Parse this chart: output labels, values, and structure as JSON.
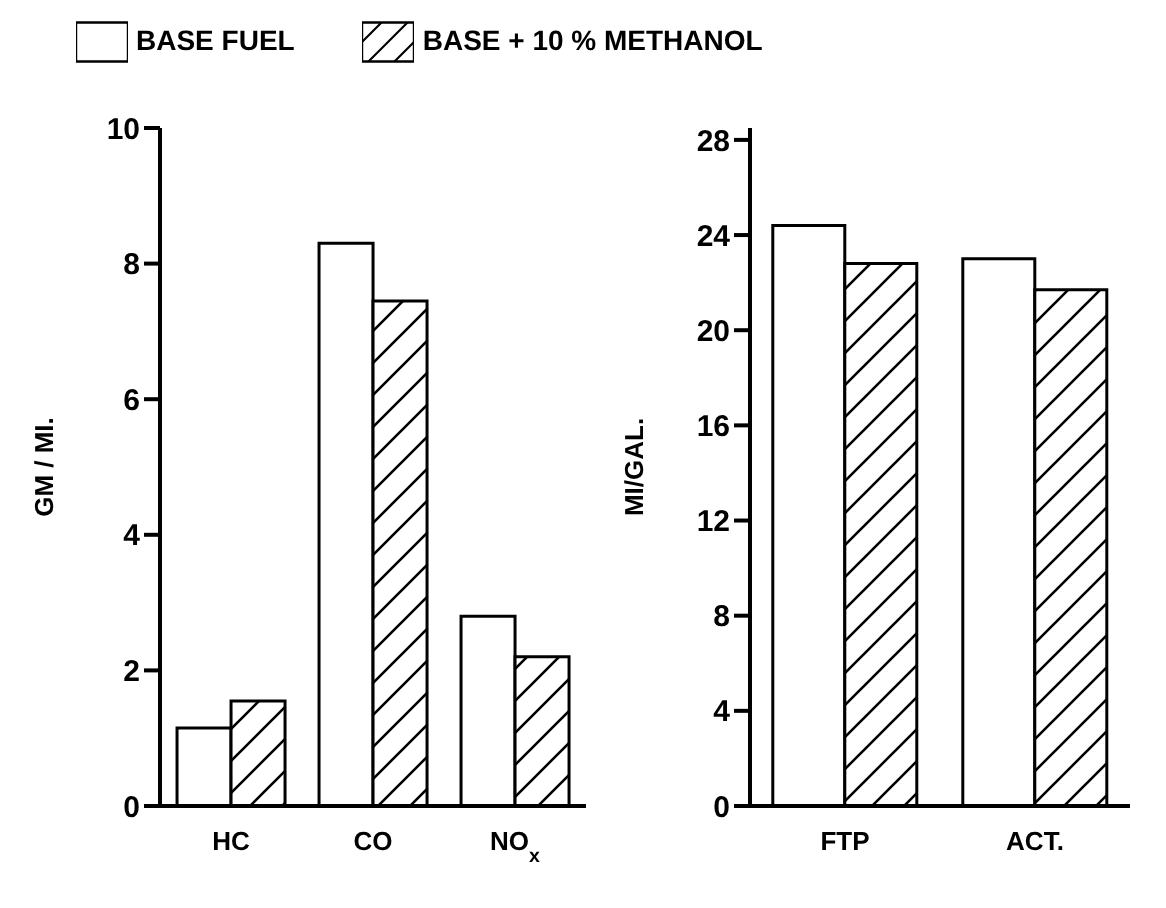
{
  "chart_data": [
    {
      "type": "bar",
      "categories": [
        "HC",
        "CO",
        "NO$_{x}$"
      ],
      "ylabel": "GM / MI.",
      "ylim": [
        0,
        10
      ],
      "yticks": [
        0,
        2,
        4,
        6,
        8,
        10
      ],
      "legend": "top",
      "grid": false,
      "series": [
        {
          "name": "BASE FUEL",
          "color": "#ffffff",
          "values": [
            1.15,
            8.3,
            2.8
          ]
        },
        {
          "name": "BASE + 10 % METHANOL",
          "color": "#000000",
          "values": [
            1.55,
            7.45,
            2.2
          ]
        }
      ]
    },
    {
      "type": "bar",
      "categories": [
        "FTP",
        "ACT."
      ],
      "ylabel": "MI/GAL.",
      "ylim": [
        0,
        28.5
      ],
      "yticks": [
        0,
        4,
        8,
        12,
        16,
        20,
        24,
        28
      ],
      "grid": false,
      "series": [
        {
          "color": "#ffffff",
          "values": [
            24.4,
            23.0
          ]
        },
        {
          "color": "#000000",
          "values": [
            22.8,
            21.7
          ]
        }
      ]
    }
  ]
}
